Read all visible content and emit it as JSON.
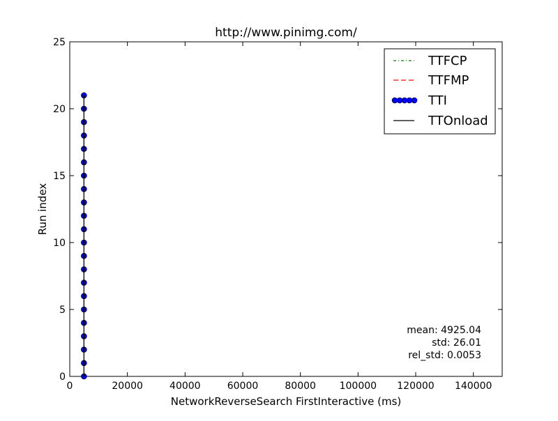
{
  "chart_data": {
    "type": "scatter",
    "title": "http://www.pinimg.com/",
    "xlabel": "NetworkReverseSearch FirstInteractive (ms)",
    "ylabel": "Run index",
    "xlim": [
      0,
      150000
    ],
    "ylim": [
      0,
      25
    ],
    "x_ticks": [
      "0",
      "20000",
      "40000",
      "60000",
      "80000",
      "100000",
      "120000",
      "140000"
    ],
    "y_ticks": [
      "0",
      "5",
      "10",
      "15",
      "20",
      "25"
    ],
    "series": [
      {
        "name": "TTFCP",
        "style": "dash-dot",
        "color": "#008000",
        "x": [],
        "y": []
      },
      {
        "name": "TTFMP",
        "style": "dashed",
        "color": "#ff0000",
        "x": [],
        "y": []
      },
      {
        "name": "TTI",
        "style": "line+markers",
        "color": "#0000ff",
        "x": [
          4925,
          4925,
          4925,
          4925,
          4925,
          4925,
          4925,
          4925,
          4925,
          4925,
          4925,
          4925,
          4925,
          4925,
          4925,
          4925,
          4925,
          4925,
          4925,
          4925,
          4925,
          4925
        ],
        "y": [
          0,
          1,
          2,
          3,
          4,
          5,
          6,
          7,
          8,
          9,
          10,
          11,
          12,
          13,
          14,
          15,
          16,
          17,
          18,
          19,
          20,
          21
        ]
      },
      {
        "name": "TTOnload",
        "style": "solid",
        "color": "#000000",
        "x": [
          4925,
          4925,
          4925,
          4925,
          4925,
          4925,
          4925,
          4925,
          4925,
          4925,
          4925,
          4925,
          4925,
          4925,
          4925,
          4925,
          4925,
          4925,
          4925,
          4925,
          4925,
          4925
        ],
        "y": [
          0,
          1,
          2,
          3,
          4,
          5,
          6,
          7,
          8,
          9,
          10,
          11,
          12,
          13,
          14,
          15,
          16,
          17,
          18,
          19,
          20,
          21
        ]
      }
    ],
    "legend_placement": "top-right",
    "grid": false,
    "annotations": [
      "mean: 4925.04",
      "std: 26.01",
      "rel_std: 0.0053"
    ]
  }
}
